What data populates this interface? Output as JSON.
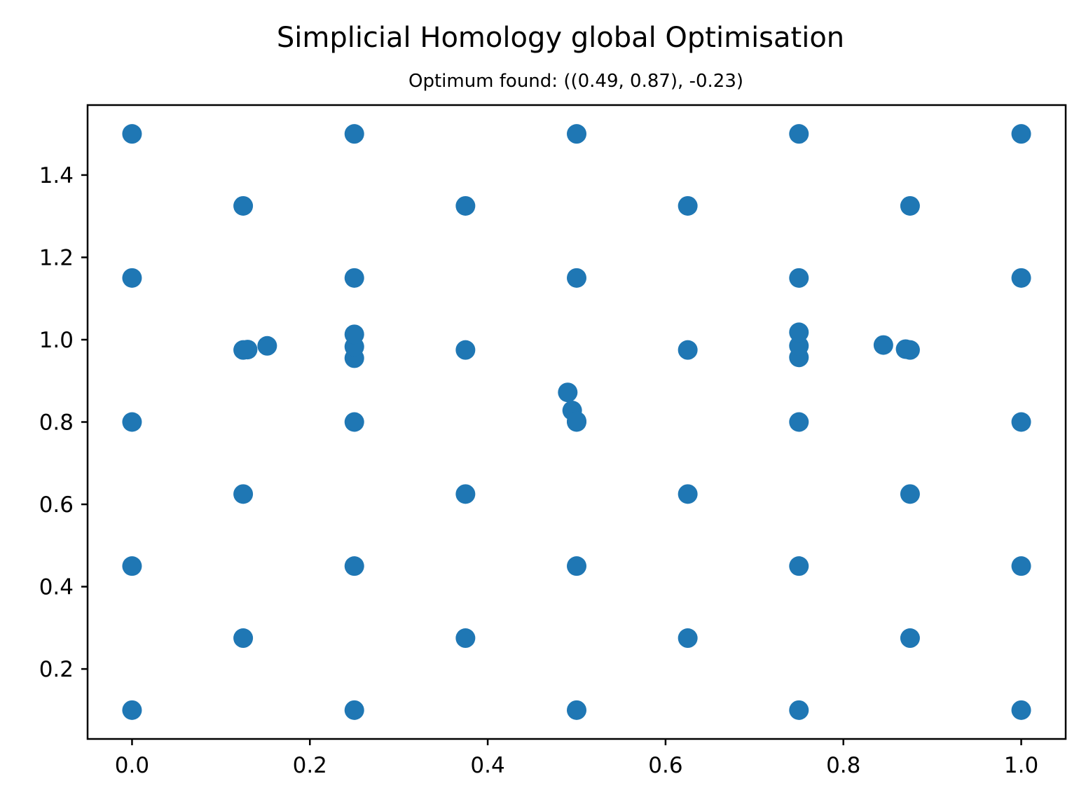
{
  "chart_data": {
    "type": "scatter",
    "title": "Simplicial Homology global Optimisation",
    "subtitle": "Optimum found: ((0.49, 0.87), -0.23)",
    "xlabel": "",
    "ylabel": "",
    "xlim": [
      -0.05,
      1.05
    ],
    "ylim": [
      0.03,
      1.57
    ],
    "x_ticks": [
      "0.0",
      "0.2",
      "0.4",
      "0.6",
      "0.8",
      "1.0"
    ],
    "y_ticks": [
      "0.2",
      "0.4",
      "0.6",
      "0.8",
      "1.0",
      "1.2",
      "1.4"
    ],
    "grid": false,
    "marker_color": "#1f77b4",
    "points": [
      [
        0.0,
        0.1
      ],
      [
        0.0,
        0.45
      ],
      [
        0.0,
        0.8
      ],
      [
        0.0,
        1.15
      ],
      [
        0.0,
        1.5
      ],
      [
        0.25,
        0.1
      ],
      [
        0.25,
        0.45
      ],
      [
        0.25,
        0.8
      ],
      [
        0.25,
        1.15
      ],
      [
        0.25,
        1.5
      ],
      [
        0.5,
        0.1
      ],
      [
        0.5,
        0.45
      ],
      [
        0.5,
        0.8
      ],
      [
        0.5,
        1.15
      ],
      [
        0.5,
        1.5
      ],
      [
        0.75,
        0.1
      ],
      [
        0.75,
        0.45
      ],
      [
        0.75,
        0.8
      ],
      [
        0.75,
        1.15
      ],
      [
        0.75,
        1.5
      ],
      [
        1.0,
        0.1
      ],
      [
        1.0,
        0.45
      ],
      [
        1.0,
        0.8
      ],
      [
        1.0,
        1.15
      ],
      [
        1.0,
        1.5
      ],
      [
        0.125,
        0.275
      ],
      [
        0.125,
        0.625
      ],
      [
        0.125,
        0.975
      ],
      [
        0.125,
        1.325
      ],
      [
        0.375,
        0.275
      ],
      [
        0.375,
        0.625
      ],
      [
        0.375,
        0.975
      ],
      [
        0.375,
        1.325
      ],
      [
        0.625,
        0.275
      ],
      [
        0.625,
        0.625
      ],
      [
        0.625,
        0.975
      ],
      [
        0.625,
        1.325
      ],
      [
        0.875,
        0.275
      ],
      [
        0.875,
        0.625
      ],
      [
        0.875,
        0.975
      ],
      [
        0.875,
        1.325
      ],
      [
        0.13,
        0.976
      ],
      [
        0.152,
        0.985
      ],
      [
        0.25,
        0.955
      ],
      [
        0.25,
        0.983
      ],
      [
        0.25,
        1.013
      ],
      [
        0.75,
        0.957
      ],
      [
        0.75,
        0.985
      ],
      [
        0.75,
        1.018
      ],
      [
        0.845,
        0.987
      ],
      [
        0.87,
        0.977
      ],
      [
        0.49,
        0.872
      ],
      [
        0.495,
        0.828
      ],
      [
        0.5,
        0.802
      ]
    ]
  }
}
